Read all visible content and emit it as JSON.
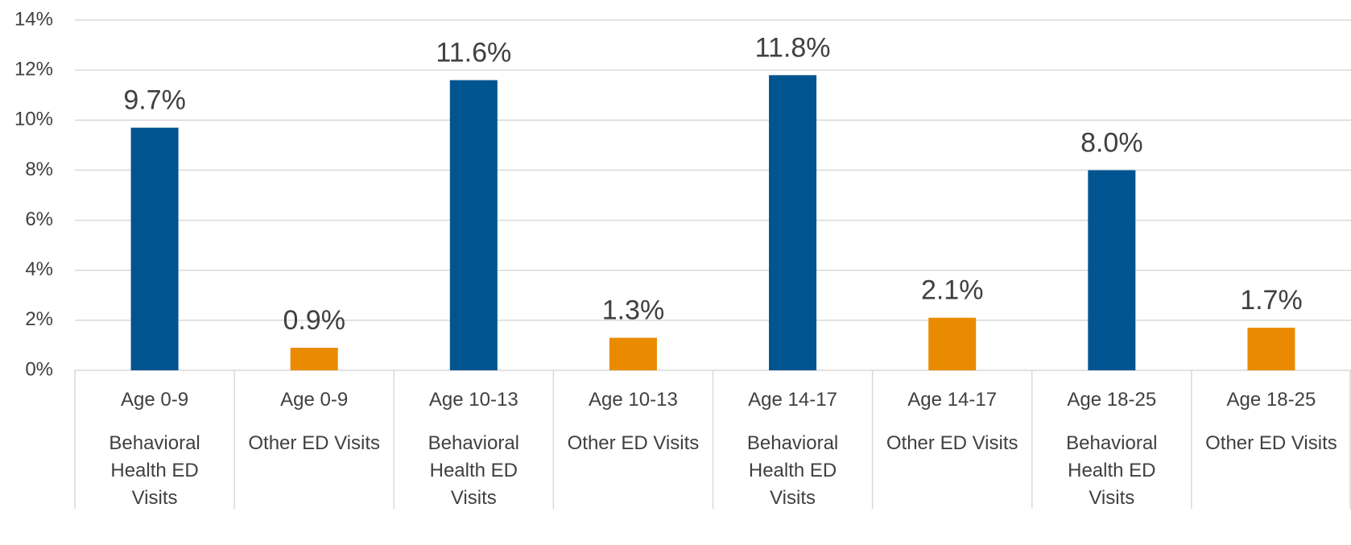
{
  "chart_data": {
    "type": "bar",
    "categories": [
      [
        "Age 0-9",
        "Behavioral Health ED Visits"
      ],
      [
        "Age 0-9",
        "Other ED Visits"
      ],
      [
        "Age 10-13",
        "Behavioral Health ED Visits"
      ],
      [
        "Age 10-13",
        "Other ED Visits"
      ],
      [
        "Age 14-17",
        "Behavioral Health ED Visits"
      ],
      [
        "Age 14-17",
        "Other ED Visits"
      ],
      [
        "Age 18-25",
        "Behavioral Health ED Visits"
      ],
      [
        "Age 18-25",
        "Other ED Visits"
      ]
    ],
    "values": [
      9.7,
      0.9,
      11.6,
      1.3,
      11.8,
      2.1,
      8.0,
      1.7
    ],
    "value_labels": [
      "9.7%",
      "0.9%",
      "11.6%",
      "1.3%",
      "11.8%",
      "2.1%",
      "8.0%",
      "1.7%"
    ],
    "colors": [
      "#00548f",
      "#ea8a00",
      "#00548f",
      "#ea8a00",
      "#00548f",
      "#ea8a00",
      "#00548f",
      "#ea8a00"
    ],
    "ylim": [
      0,
      14
    ],
    "yticks": [
      {
        "value": 0,
        "label": "0%"
      },
      {
        "value": 2,
        "label": "2%"
      },
      {
        "value": 4,
        "label": "4%"
      },
      {
        "value": 6,
        "label": "6%"
      },
      {
        "value": 8,
        "label": "8%"
      },
      {
        "value": 10,
        "label": "10%"
      },
      {
        "value": 12,
        "label": "12%"
      },
      {
        "value": 14,
        "label": "14%"
      }
    ],
    "grid": true
  }
}
